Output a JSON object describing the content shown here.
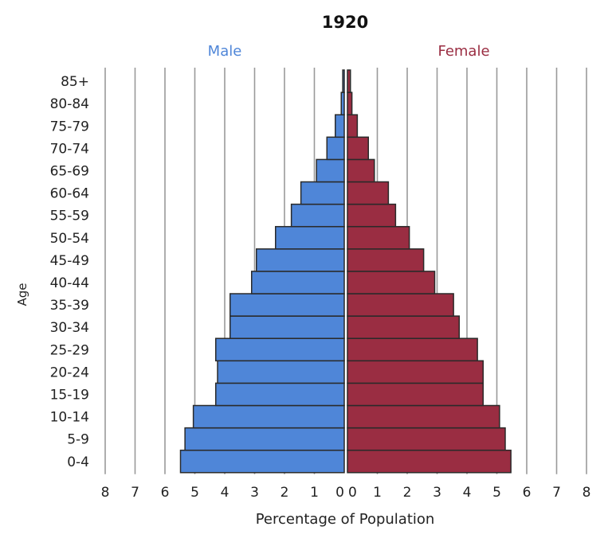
{
  "chart_data": {
    "type": "bar",
    "orientation": "horizontal-pyramid",
    "title": "1920",
    "xlabel": "Percentage of Population",
    "ylabel": "Age",
    "categories": [
      "0-4",
      "5-9",
      "10-14",
      "15-19",
      "20-24",
      "25-29",
      "30-34",
      "35-39",
      "40-44",
      "45-49",
      "50-54",
      "55-59",
      "60-64",
      "65-69",
      "70-74",
      "75-79",
      "80-84",
      "85+"
    ],
    "series": [
      {
        "name": "Male",
        "color": "#4f86d8",
        "values": [
          5.48,
          5.33,
          5.05,
          4.3,
          4.24,
          4.3,
          3.82,
          3.82,
          3.1,
          2.94,
          2.3,
          1.77,
          1.45,
          0.93,
          0.58,
          0.3,
          0.1,
          0.05
        ]
      },
      {
        "name": "Female",
        "color": "#9a2d42",
        "values": [
          5.47,
          5.28,
          5.09,
          4.54,
          4.54,
          4.35,
          3.74,
          3.55,
          2.92,
          2.55,
          2.07,
          1.61,
          1.37,
          0.9,
          0.7,
          0.33,
          0.15,
          0.1
        ]
      }
    ],
    "xlim": [
      0,
      8
    ],
    "xticks": [
      "8",
      "7",
      "6",
      "5",
      "4",
      "3",
      "2",
      "1",
      "0",
      "0",
      "1",
      "2",
      "3",
      "4",
      "5",
      "6",
      "7",
      "8"
    ],
    "grid": "vertical"
  }
}
